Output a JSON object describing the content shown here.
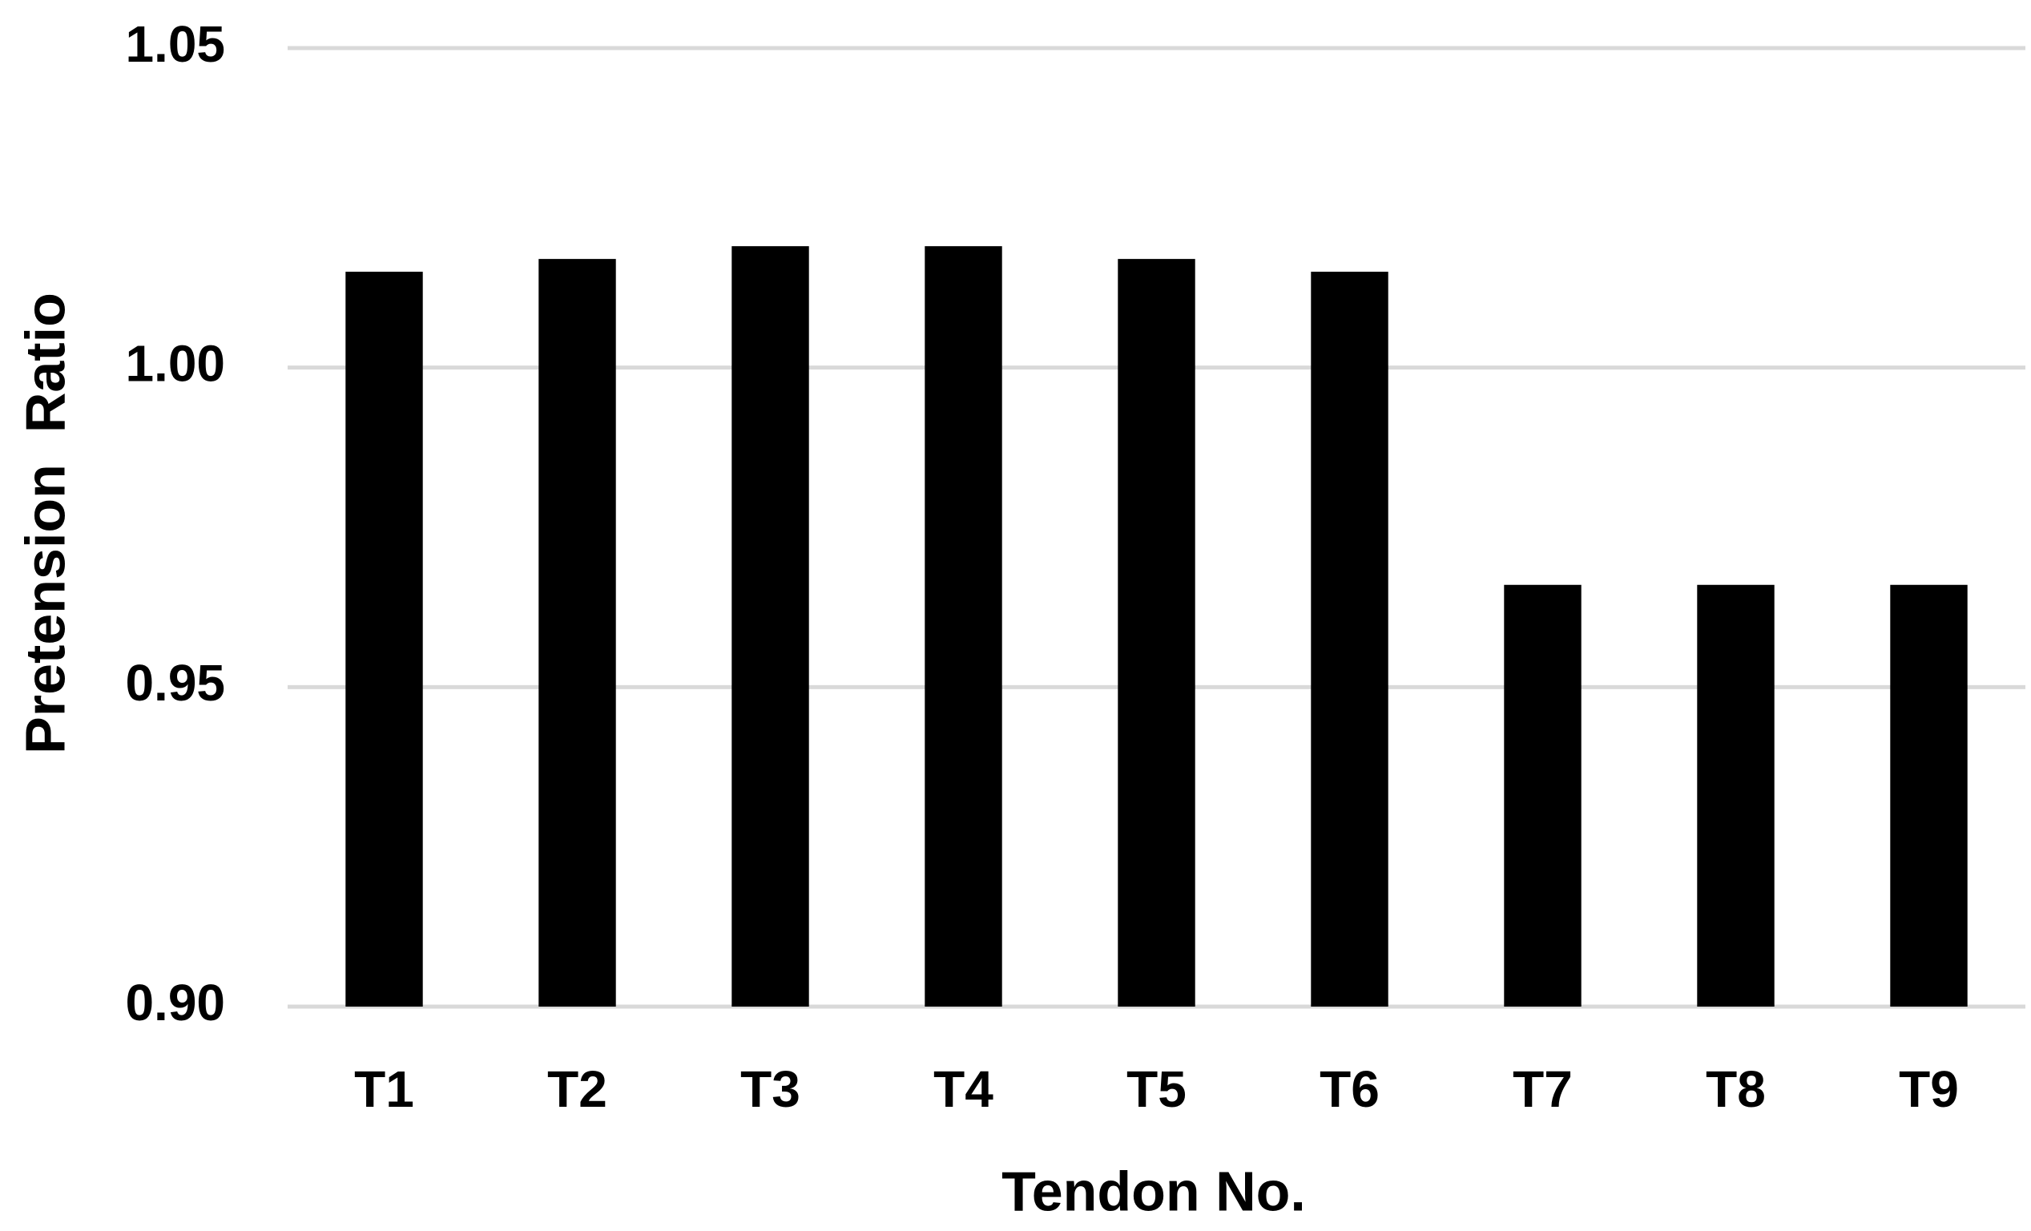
{
  "chart_data": {
    "type": "bar",
    "x_label": "Tendon No.",
    "y_label": "Pretension  Ratio",
    "categories": [
      "T1",
      "T2",
      "T3",
      "T4",
      "T5",
      "T6",
      "T7",
      "T8",
      "T9"
    ],
    "values": [
      1.015,
      1.017,
      1.019,
      1.019,
      1.017,
      1.015,
      0.966,
      0.966,
      0.966
    ],
    "color": "#000000",
    "ylim": [
      0.9,
      1.05
    ],
    "yticks": [
      {
        "value": 0.9,
        "label": "0.90"
      },
      0.95,
      {
        "value": 1.0,
        "label": "1.00"
      },
      1.05
    ],
    "grid": true
  }
}
